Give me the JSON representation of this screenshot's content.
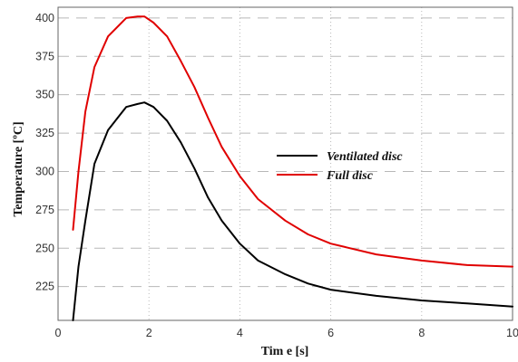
{
  "chart_data": {
    "type": "line",
    "title": "",
    "xlabel": "Tim e [s]",
    "ylabel": "Temperature [ºC]",
    "xlim": [
      0,
      10
    ],
    "ylim": [
      203,
      407
    ],
    "x_ticks": [
      0,
      2,
      4,
      6,
      8,
      10
    ],
    "y_ticks": [
      225,
      250,
      275,
      300,
      325,
      350,
      375,
      400
    ],
    "grid": {
      "vertical": "dotted",
      "horizontal": "dashed"
    },
    "legend": {
      "placement": "center-right"
    },
    "series": [
      {
        "name": "Ventilated disc",
        "color": "#000000",
        "x": [
          0.33,
          0.45,
          0.6,
          0.8,
          1.1,
          1.5,
          1.75,
          1.9,
          2.1,
          2.4,
          2.7,
          3.0,
          3.3,
          3.6,
          4.0,
          4.4,
          5.0,
          5.5,
          6.0,
          7.0,
          8.0,
          9.0,
          10.0
        ],
        "values": [
          203,
          238,
          268,
          305,
          327,
          342,
          344,
          345,
          342,
          333,
          319,
          302,
          283,
          268,
          253,
          242,
          233,
          227,
          223,
          219,
          216,
          214,
          212
        ]
      },
      {
        "name": "Full disc",
        "color": "#e00000",
        "x": [
          0.33,
          0.45,
          0.6,
          0.8,
          1.1,
          1.5,
          1.75,
          1.9,
          2.1,
          2.4,
          2.7,
          3.0,
          3.3,
          3.6,
          4.0,
          4.4,
          5.0,
          5.5,
          6.0,
          7.0,
          8.0,
          9.0,
          10.0
        ],
        "values": [
          262,
          300,
          339,
          368,
          388,
          400,
          401,
          401,
          397,
          388,
          372,
          355,
          335,
          316,
          297,
          282,
          268,
          259,
          253,
          246,
          242,
          239,
          238
        ]
      }
    ]
  }
}
